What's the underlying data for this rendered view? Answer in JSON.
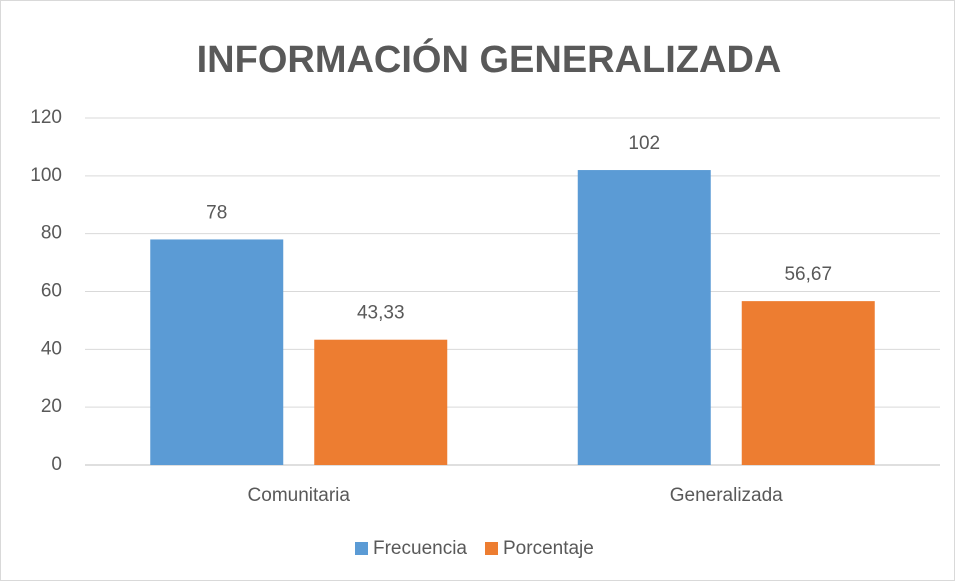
{
  "chart_data": {
    "type": "bar",
    "title": "INFORMACIÓN GENERALIZADA",
    "categories": [
      "Comunitaria",
      "Generalizada"
    ],
    "series": [
      {
        "name": "Frecuencia",
        "color": "#5b9bd5",
        "values": [
          78,
          102
        ]
      },
      {
        "name": "Porcentaje",
        "color": "#ed7d31",
        "values": [
          43.33,
          56.67
        ],
        "value_labels": [
          "43,33",
          "56,67"
        ]
      }
    ],
    "ylim": [
      0,
      120
    ],
    "yticks": [
      0,
      20,
      40,
      60,
      80,
      100,
      120
    ],
    "grid": true,
    "legend": "bottom"
  }
}
